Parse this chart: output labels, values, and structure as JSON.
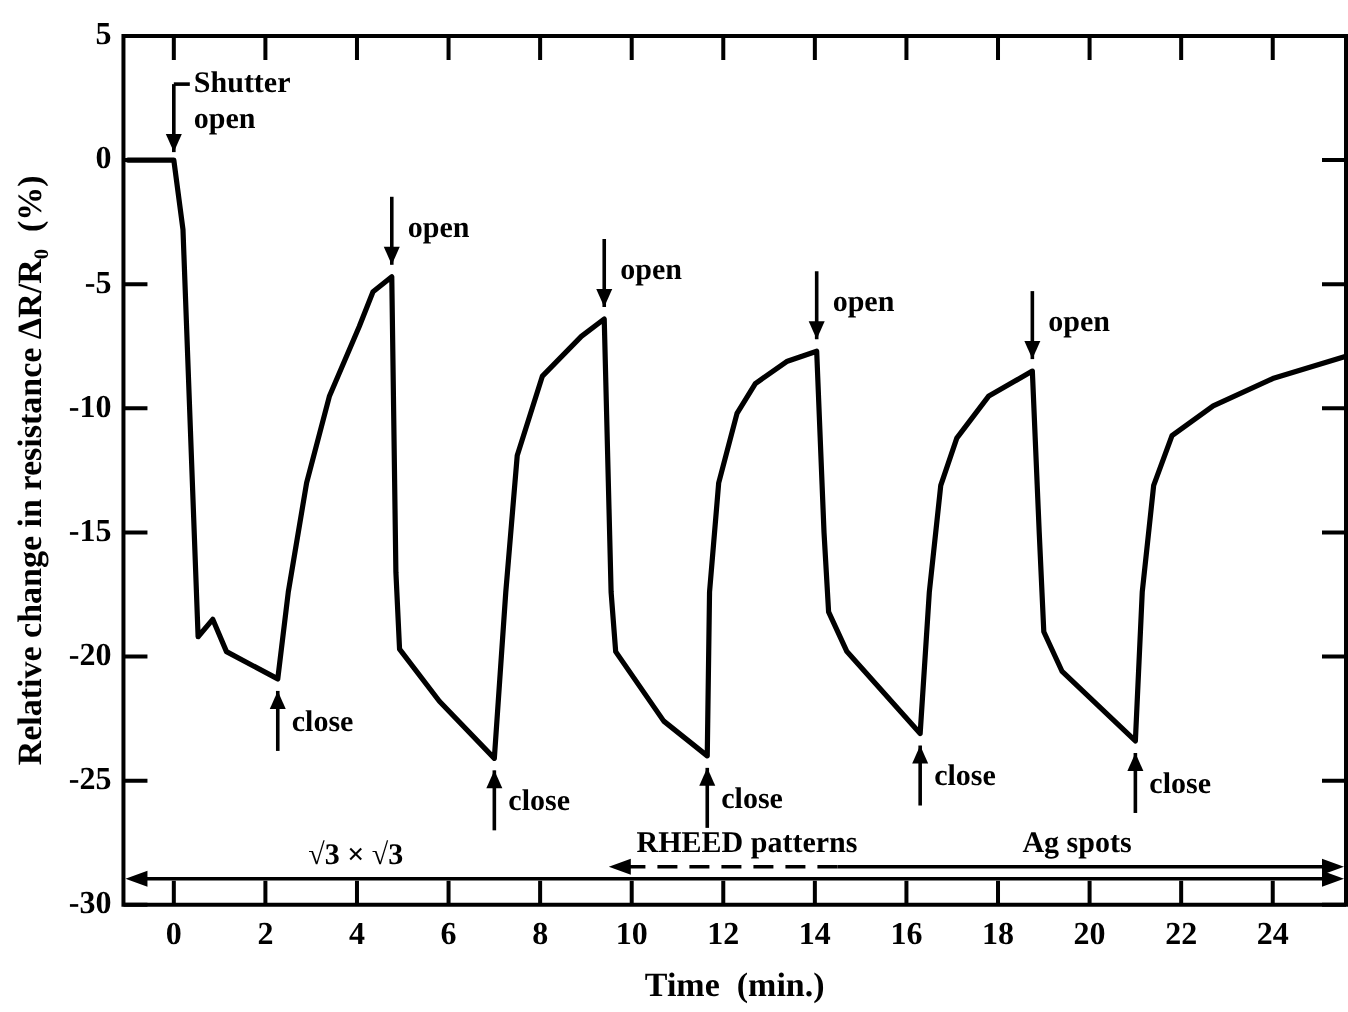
{
  "chart_data": {
    "type": "line",
    "xlabel": "Time  (min.)",
    "ylabel": "Relative change in resistance ΔR/R₀  (%)",
    "xlim": [
      -1.1,
      25.6
    ],
    "xticks": [
      0,
      2,
      4,
      6,
      8,
      10,
      12,
      14,
      16,
      18,
      20,
      22,
      24
    ],
    "ylim": [
      -30,
      5
    ],
    "yticks": [
      -30,
      -25,
      -20,
      -15,
      -10,
      -5,
      0,
      5
    ],
    "marker": "none",
    "line_style": "solid",
    "series": [
      {
        "color": "#000000",
        "x": [
          -1,
          0,
          0.2,
          0.53,
          0.85,
          1.15,
          2.27,
          2.5,
          2.9,
          3.4,
          4.05,
          4.35,
          4.76,
          4.85,
          4.93,
          5.8,
          7.0,
          7.25,
          7.5,
          8.05,
          8.9,
          9.4,
          9.55,
          9.65,
          10.7,
          11.65,
          11.7,
          11.9,
          12.3,
          12.7,
          13.4,
          14.04,
          14.2,
          14.3,
          14.7,
          16.3,
          16.5,
          16.75,
          17.1,
          17.8,
          18.75,
          18.9,
          19.0,
          19.4,
          21.0,
          21.15,
          21.4,
          21.8,
          22.7,
          24.0,
          25.6
        ],
        "values": [
          0,
          0,
          -2.8,
          -19.2,
          -18.5,
          -19.8,
          -20.9,
          -17.4,
          -13,
          -9.5,
          -6.7,
          -5.3,
          -4.7,
          -16.6,
          -19.7,
          -21.8,
          -24.1,
          -17.4,
          -11.9,
          -8.7,
          -7.1,
          -6.4,
          -17.4,
          -19.8,
          -22.6,
          -24,
          -17.4,
          -13,
          -10.2,
          -9,
          -8.1,
          -7.7,
          -15,
          -18.2,
          -19.8,
          -23.1,
          -17.4,
          -13.1,
          -11.2,
          -9.5,
          -8.5,
          -15,
          -19,
          -20.6,
          -23.4,
          -17.4,
          -13.1,
          -11.1,
          -9.9,
          -8.8,
          -7.9
        ]
      }
    ],
    "annotations": [
      {
        "text": "Shutter\nopen",
        "x": 0,
        "y": 0
      },
      {
        "text": "open",
        "x": 4.76,
        "y": -4.7
      },
      {
        "text": "open",
        "x": 9.4,
        "y": -6.4
      },
      {
        "text": "open",
        "x": 14.04,
        "y": -7.7
      },
      {
        "text": "open",
        "x": 18.75,
        "y": -8.5
      },
      {
        "text": "close",
        "x": 2.27,
        "y": -20.9
      },
      {
        "text": "close",
        "x": 7.0,
        "y": -24.1
      },
      {
        "text": "close",
        "x": 11.65,
        "y": -24
      },
      {
        "text": "close",
        "x": 16.3,
        "y": -23.1
      },
      {
        "text": "close",
        "x": 21.0,
        "y": -23.4
      },
      "√3 × √3",
      "RHEED patterns",
      "Ag spots"
    ]
  }
}
